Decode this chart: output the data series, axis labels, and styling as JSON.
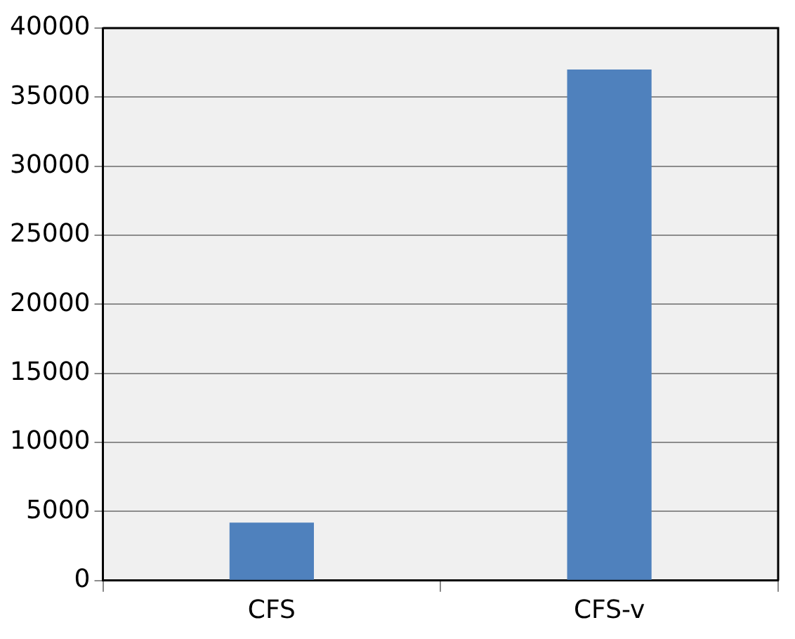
{
  "chart_data": {
    "type": "bar",
    "categories": [
      "CFS",
      "CFS-v"
    ],
    "values": [
      4200,
      37000
    ],
    "color": "#4f81bd",
    "ylim": [
      0,
      40000
    ],
    "yticks": [
      0,
      5000,
      10000,
      15000,
      20000,
      25000,
      30000,
      35000,
      40000
    ],
    "grid": "y",
    "legend": false
  }
}
